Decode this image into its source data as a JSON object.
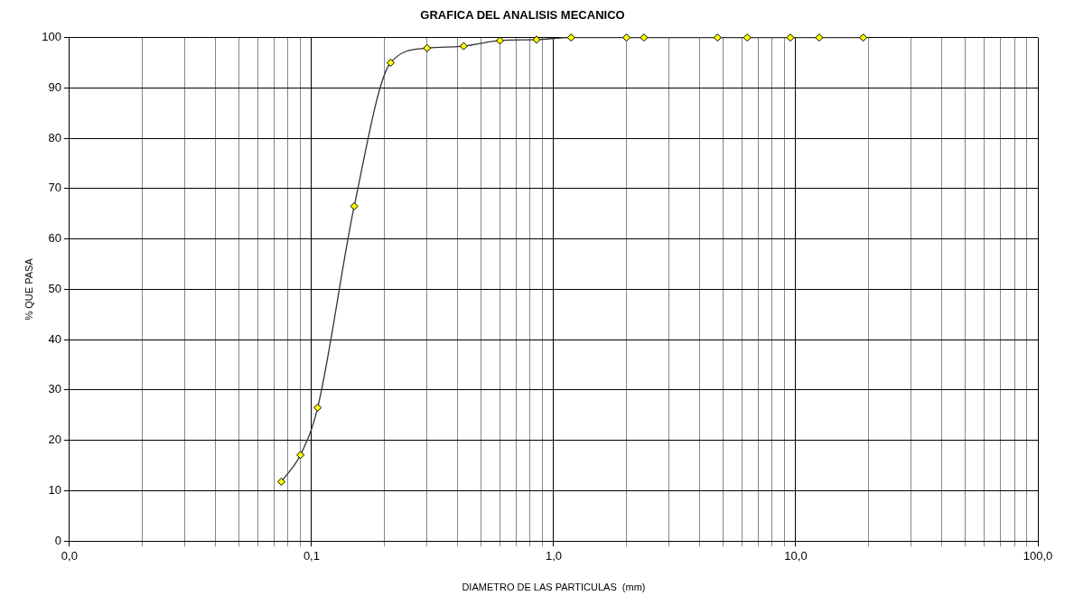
{
  "chart_data": {
    "type": "line",
    "title": "GRAFICA DEL ANALISIS MECANICO",
    "xlabel": "DIAMETRO DE LAS PARTICULAS  (mm)",
    "ylabel": "% QUE PASA",
    "log": "x",
    "grid": true,
    "marker": "diamond",
    "line_style": "solid",
    "legend": false,
    "xlim": [
      0.01,
      100
    ],
    "ylim": [
      0,
      100
    ],
    "xticks": [
      {
        "value": 0.01,
        "label": "0,0"
      },
      {
        "value": 0.02,
        "label": null
      },
      {
        "value": 0.03,
        "label": null
      },
      {
        "value": 0.04,
        "label": null
      },
      {
        "value": 0.05,
        "label": null
      },
      {
        "value": 0.06,
        "label": null
      },
      {
        "value": 0.07,
        "label": null
      },
      {
        "value": 0.08,
        "label": null
      },
      {
        "value": 0.09,
        "label": null
      },
      {
        "value": 0.1,
        "label": "0,1"
      },
      {
        "value": 0.2,
        "label": null
      },
      {
        "value": 0.3,
        "label": null
      },
      {
        "value": 0.4,
        "label": null
      },
      {
        "value": 0.5,
        "label": null
      },
      {
        "value": 0.6,
        "label": null
      },
      {
        "value": 0.7,
        "label": null
      },
      {
        "value": 0.8,
        "label": null
      },
      {
        "value": 0.9,
        "label": null
      },
      {
        "value": 1,
        "label": "1,0"
      },
      {
        "value": 2,
        "label": null
      },
      {
        "value": 3,
        "label": null
      },
      {
        "value": 4,
        "label": null
      },
      {
        "value": 5,
        "label": null
      },
      {
        "value": 6,
        "label": null
      },
      {
        "value": 7,
        "label": null
      },
      {
        "value": 8,
        "label": null
      },
      {
        "value": 9,
        "label": null
      },
      {
        "value": 10,
        "label": "10,0"
      },
      {
        "value": 20,
        "label": null
      },
      {
        "value": 30,
        "label": null
      },
      {
        "value": 40,
        "label": null
      },
      {
        "value": 50,
        "label": null
      },
      {
        "value": 60,
        "label": null
      },
      {
        "value": 70,
        "label": null
      },
      {
        "value": 80,
        "label": null
      },
      {
        "value": 90,
        "label": null
      },
      {
        "value": 100,
        "label": "100,0"
      }
    ],
    "yticks": [
      0,
      10,
      20,
      30,
      40,
      50,
      60,
      70,
      80,
      90,
      100
    ],
    "series": [
      {
        "color": "#ffff00",
        "x": [
          0.075,
          0.09,
          0.106,
          0.15,
          0.212,
          0.3,
          0.425,
          0.6,
          0.85,
          1.18,
          2,
          2.36,
          4.75,
          6.3,
          9.5,
          12.5,
          19
        ],
        "values": [
          11.8,
          17.1,
          26.5,
          66.5,
          95,
          97.9,
          98.3,
          99.4,
          99.6,
          100,
          100,
          100,
          100,
          100,
          100,
          100,
          100
        ]
      }
    ]
  }
}
